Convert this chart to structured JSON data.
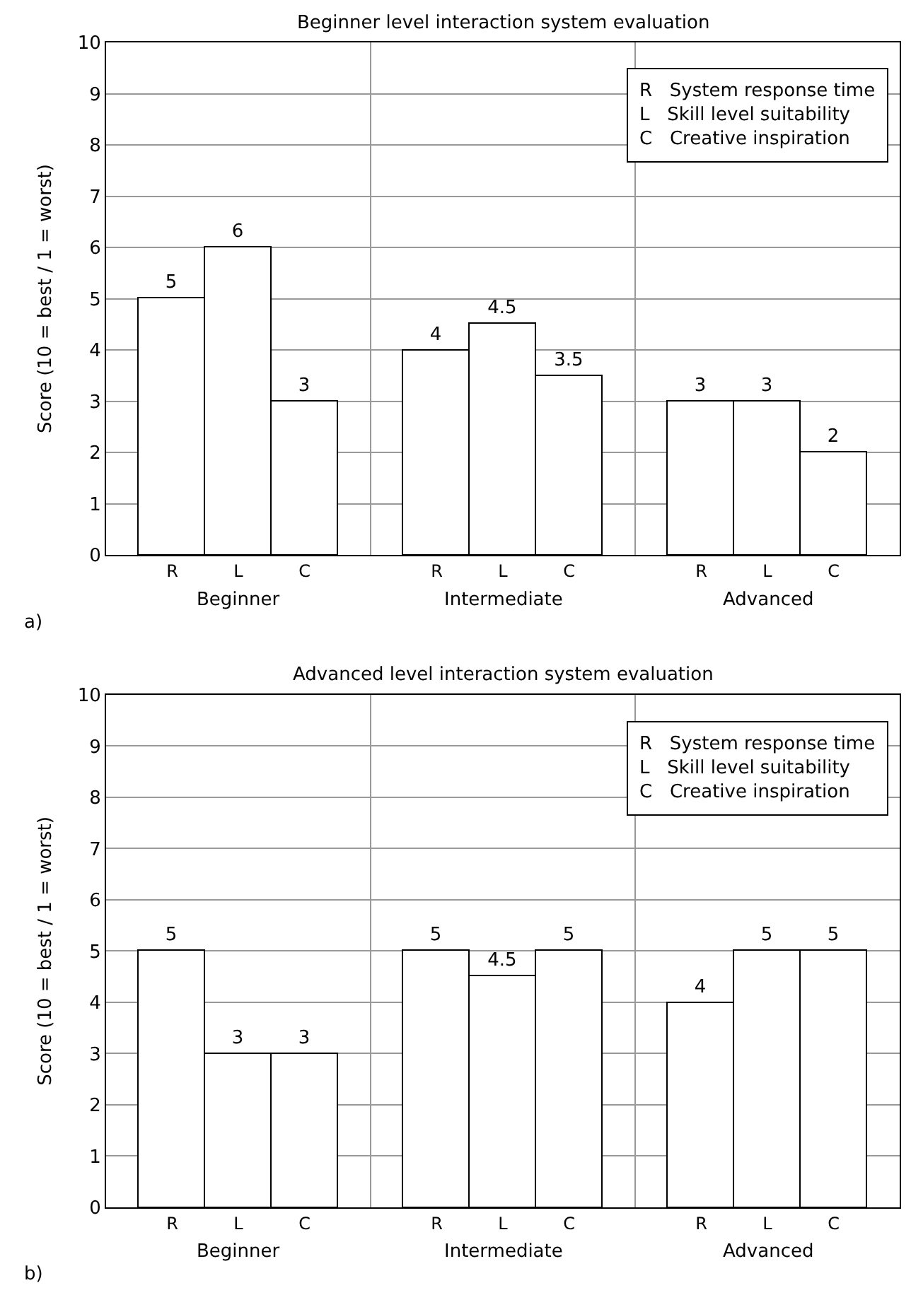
{
  "chart_data": [
    {
      "type": "bar",
      "title": "Beginner level interaction system evaluation",
      "ylabel": "Score (10 = best / 1 = worst)",
      "categories": [
        "R",
        "L",
        "C",
        "R",
        "L",
        "C",
        "R",
        "L",
        "C"
      ],
      "values": [
        5,
        6,
        3,
        4,
        4.5,
        3.5,
        3,
        3,
        2
      ],
      "color": "#ffffff",
      "ylim": [
        0,
        10
      ],
      "yticks": [
        0,
        1,
        2,
        3,
        4,
        5,
        6,
        7,
        8,
        9,
        10
      ],
      "grid": true,
      "data_labels": true,
      "annotations": [
        "a)",
        "Beginner",
        "Intermediate",
        "Advanced",
        "R   System response time",
        "L   Skill level suitability",
        "C   Creative inspiration"
      ]
    },
    {
      "type": "bar",
      "title": "Advanced level interaction system evaluation",
      "ylabel": "Score (10 = best / 1 = worst)",
      "categories": [
        "R",
        "L",
        "C",
        "R",
        "L",
        "C",
        "R",
        "L",
        "C"
      ],
      "values": [
        5,
        3,
        3,
        5,
        4.5,
        5,
        4,
        5,
        5
      ],
      "color": "#ffffff",
      "ylim": [
        0,
        10
      ],
      "yticks": [
        0,
        1,
        2,
        3,
        4,
        5,
        6,
        7,
        8,
        9,
        10
      ],
      "grid": true,
      "data_labels": true,
      "annotations": [
        "b)",
        "Beginner",
        "Intermediate",
        "Advanced",
        "R   System response time",
        "L   Skill level suitability",
        "C   Creative inspiration"
      ]
    }
  ]
}
